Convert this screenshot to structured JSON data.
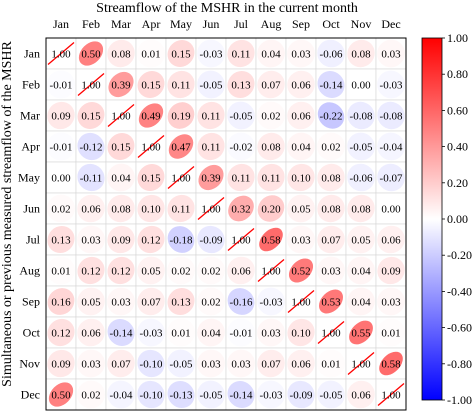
{
  "chart_data": {
    "type": "heatmap",
    "title": "Streamflow of the MSHR in the current month",
    "xlabel": "",
    "ylabel": "Simultaneous or previous measured streamflow of the MSHR",
    "columns": [
      "Jan",
      "Feb",
      "Mar",
      "Apr",
      "May",
      "Jun",
      "Jul",
      "Aug",
      "Sep",
      "Oct",
      "Nov",
      "Dec"
    ],
    "rows": [
      "Jan",
      "Feb",
      "Mar",
      "Apr",
      "May",
      "Jun",
      "Jul",
      "Aug",
      "Sep",
      "Oct",
      "Nov",
      "Dec"
    ],
    "values": [
      [
        1.0,
        0.5,
        0.08,
        0.01,
        0.15,
        -0.03,
        0.11,
        0.04,
        0.03,
        -0.06,
        0.08,
        0.03
      ],
      [
        -0.01,
        1.0,
        0.39,
        0.15,
        0.11,
        -0.05,
        0.13,
        0.07,
        0.06,
        -0.14,
        0.0,
        -0.03
      ],
      [
        0.09,
        0.15,
        1.0,
        0.49,
        0.19,
        0.11,
        -0.05,
        0.02,
        0.06,
        -0.22,
        -0.08,
        -0.08
      ],
      [
        -0.01,
        -0.12,
        0.15,
        1.0,
        0.47,
        0.11,
        -0.02,
        0.08,
        0.04,
        0.02,
        -0.05,
        -0.04
      ],
      [
        0.0,
        -0.11,
        0.04,
        0.15,
        1.0,
        0.39,
        0.11,
        0.11,
        0.1,
        0.08,
        -0.06,
        -0.07
      ],
      [
        0.02,
        0.06,
        0.08,
        0.1,
        0.11,
        1.0,
        0.32,
        0.2,
        0.05,
        0.08,
        0.08,
        0.0
      ],
      [
        0.13,
        0.03,
        0.09,
        0.12,
        -0.18,
        -0.09,
        1.0,
        0.58,
        0.03,
        0.07,
        0.05,
        0.06
      ],
      [
        0.01,
        0.12,
        0.12,
        0.05,
        0.02,
        0.02,
        0.06,
        1.0,
        0.52,
        0.03,
        0.04,
        0.09
      ],
      [
        0.16,
        0.05,
        0.03,
        0.07,
        0.13,
        0.02,
        -0.16,
        -0.03,
        1.0,
        0.53,
        0.04,
        0.03
      ],
      [
        0.12,
        0.06,
        -0.14,
        -0.03,
        0.01,
        0.04,
        -0.01,
        0.03,
        0.1,
        1.0,
        0.55,
        0.01
      ],
      [
        0.09,
        0.03,
        0.07,
        -0.1,
        -0.05,
        0.03,
        0.03,
        0.07,
        0.06,
        0.01,
        1.0,
        0.58
      ],
      [
        0.5,
        0.02,
        -0.04,
        -0.1,
        -0.13,
        -0.05,
        -0.14,
        -0.03,
        -0.09,
        -0.05,
        0.06,
        1.0
      ]
    ],
    "colorbar": {
      "range": [
        -1.0,
        1.0
      ],
      "ticks": [
        "1.00",
        "0.80",
        "0.60",
        "0.40",
        "0.20",
        "0.00",
        "-0.20",
        "-0.40",
        "-0.60",
        "-0.80",
        "-1.00"
      ],
      "colors": {
        "negative": "#0000ff",
        "zero": "#ffffff",
        "positive": "#ff0000"
      }
    },
    "grid": true,
    "legend": "right"
  }
}
